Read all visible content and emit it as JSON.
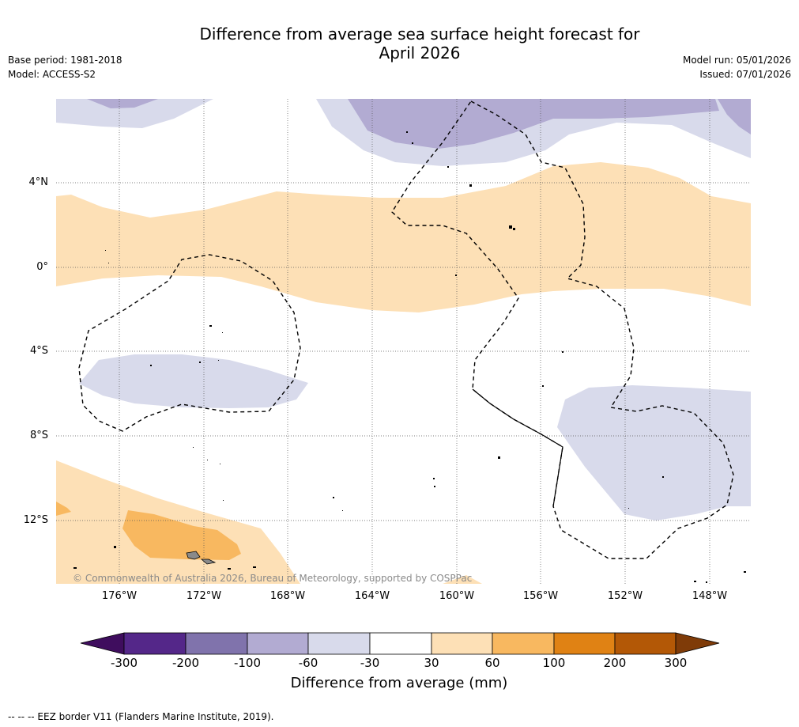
{
  "title_line1": "Difference from average sea surface height forecast for",
  "title_line2": "April 2026",
  "base_period": "Base period: 1981-2018",
  "model": "Model: ACCESS-S2",
  "model_run": "Model run: 05/01/2026",
  "issued": "Issued: 07/01/2026",
  "lat_labels": [
    "4°N",
    "0°",
    "4°S",
    "8°S",
    "12°S"
  ],
  "lon_labels": [
    "176°W",
    "172°W",
    "168°W",
    "164°W",
    "160°W",
    "156°W",
    "152°W",
    "148°W"
  ],
  "copyright": "© Commonwealth of Australia 2026, Bureau of Meteorology, supported by COSPPac",
  "colorbar": {
    "title": "Difference from average (mm)",
    "labels": [
      "-300",
      "-200",
      "-100",
      "-60",
      "-30",
      "30",
      "60",
      "100",
      "200",
      "300"
    ],
    "colors": [
      "#3f0d5e",
      "#542789",
      "#8073ac",
      "#b2abd2",
      "#d8daeb",
      "#ffffff",
      "#fde0b6",
      "#f8b860",
      "#e08214",
      "#b35806",
      "#7f3b08"
    ]
  },
  "footer": "-- -- -- EEZ border V11 (Flanders Marine Institute, 2019)."
}
